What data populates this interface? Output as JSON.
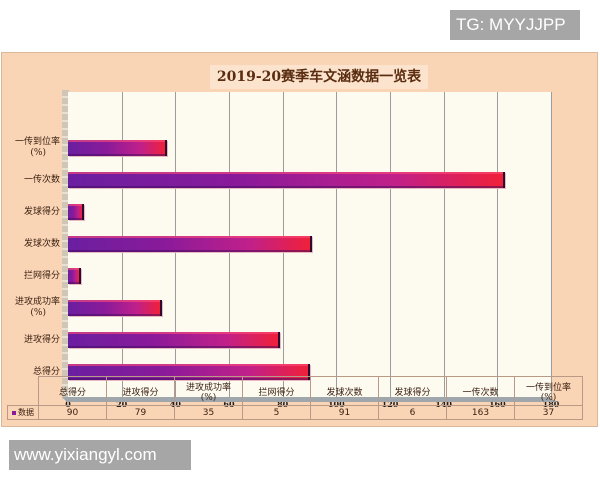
{
  "watermarks": {
    "top": "TG: MYYJJPP",
    "bottom": "www.yixiangyl.com"
  },
  "chart_data": {
    "type": "bar",
    "orientation": "horizontal",
    "title": "2019-20赛季车文涵数据一览表",
    "categories": [
      "一传到位率(%)",
      "一传次数",
      "发球得分",
      "发球次数",
      "拦网得分",
      "进攻成功率(%)",
      "进攻得分",
      "总得分"
    ],
    "series": [
      {
        "name": "数据",
        "values": [
          37,
          163,
          6,
          91,
          5,
          35,
          79,
          90
        ]
      }
    ],
    "xlabel": "",
    "ylabel": "",
    "xlim": [
      0,
      180
    ],
    "xticks": [
      0,
      20,
      40,
      60,
      80,
      100,
      120,
      140,
      160,
      180
    ],
    "grid": true,
    "legend_position": "data-table",
    "colors": {
      "bar_start": "#6a1fa0",
      "bar_end": "#f0203a",
      "panel_bg": "#f9d4b5",
      "plot_bg": "#fdfaf0"
    },
    "data_table": {
      "columns": [
        "总得分",
        "进攻得分",
        "进攻成功率(%)",
        "拦网得分",
        "发球次数",
        "发球得分",
        "一传次数",
        "一传到位率(%)"
      ],
      "row_label": "数据",
      "values": [
        "90",
        "79",
        "35",
        "5",
        "91",
        "6",
        "163",
        "37"
      ]
    }
  },
  "rows": [
    {
      "label": [
        "一传到位率",
        "(%)"
      ],
      "value": 37
    },
    {
      "label": [
        "一传次数"
      ],
      "value": 163
    },
    {
      "label": [
        "发球得分"
      ],
      "value": 6
    },
    {
      "label": [
        "发球次数"
      ],
      "value": 91
    },
    {
      "label": [
        "拦网得分"
      ],
      "value": 5
    },
    {
      "label": [
        "进攻成功率",
        "(%)"
      ],
      "value": 35
    },
    {
      "label": [
        "进攻得分"
      ],
      "value": 79
    },
    {
      "label": [
        "总得分"
      ],
      "value": 90
    }
  ],
  "ticks": [
    "0",
    "20",
    "40",
    "60",
    "80",
    "100",
    "120",
    "140",
    "160",
    "180"
  ],
  "table": {
    "headers": [
      [
        "总得分"
      ],
      [
        "进攻得分"
      ],
      [
        "进攻成功率",
        "(%)"
      ],
      [
        "拦网得分"
      ],
      [
        "发球次数"
      ],
      [
        "发球得分"
      ],
      [
        "一传次数"
      ],
      [
        "一传到位率",
        "(%)"
      ]
    ],
    "row_label": "数据",
    "values": [
      "90",
      "79",
      "35",
      "5",
      "91",
      "6",
      "163",
      "37"
    ]
  }
}
